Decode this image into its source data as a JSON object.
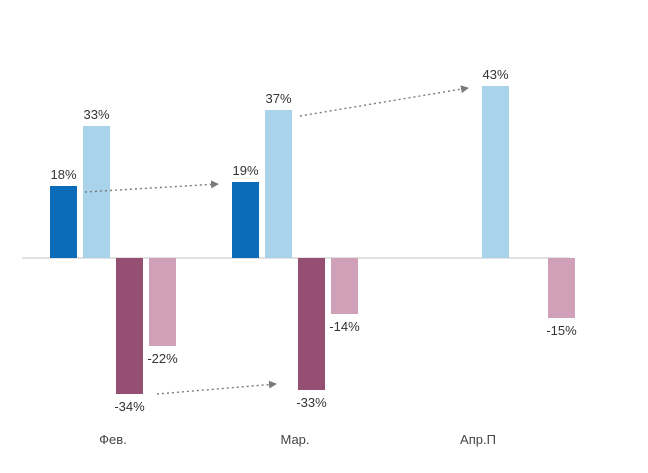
{
  "chart_data": {
    "type": "bar",
    "categories": [
      "Фев.",
      "Мар.",
      "Апр.П"
    ],
    "series": [
      {
        "name": "series-1",
        "color": "#0a6cb8",
        "values": [
          18,
          19,
          null
        ],
        "labels": [
          "18%",
          "19%",
          ""
        ]
      },
      {
        "name": "series-2",
        "color": "#a9d3ea",
        "values": [
          33,
          37,
          43
        ],
        "labels": [
          "33%",
          "37%",
          "43%"
        ]
      },
      {
        "name": "series-3",
        "color": "#954f72",
        "values": [
          -34,
          -33,
          null
        ],
        "labels": [
          "-34%",
          "-33%",
          ""
        ]
      },
      {
        "name": "series-4",
        "color": "#d09fb8",
        "values": [
          -22,
          -14,
          -15
        ],
        "labels": [
          "-22%",
          "-14%",
          "-15%"
        ]
      }
    ],
    "ylim": [
      -34,
      43
    ],
    "grid": false,
    "legend": "none",
    "annotations": [
      {
        "type": "dotted-arrow",
        "from": {
          "series": 0,
          "category": 0
        },
        "to": {
          "series": 0,
          "category": 1
        }
      },
      {
        "type": "dotted-arrow",
        "from": {
          "series": 1,
          "category": 1
        },
        "to": {
          "series": 1,
          "category": 2
        }
      },
      {
        "type": "dotted-arrow",
        "from": {
          "series": 2,
          "category": 0
        },
        "to": {
          "series": 2,
          "category": 1
        }
      }
    ]
  }
}
